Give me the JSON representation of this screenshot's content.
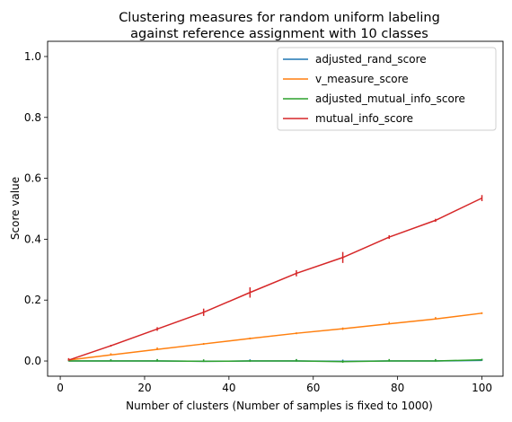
{
  "chart_data": {
    "type": "line",
    "title": [
      "Clustering measures for random uniform labeling",
      "against reference assignment with 10 classes"
    ],
    "xlabel": "Number of clusters (Number of samples is fixed to 1000)",
    "ylabel": "Score value",
    "xlim": [
      -3,
      105
    ],
    "ylim": [
      -0.05,
      1.05
    ],
    "xticks": [
      0,
      20,
      40,
      60,
      80,
      100
    ],
    "xtick_labels": [
      "0",
      "20",
      "40",
      "60",
      "80",
      "100"
    ],
    "yticks": [
      0.0,
      0.2,
      0.4,
      0.6,
      0.8,
      1.0
    ],
    "ytick_labels": [
      "0.0",
      "0.2",
      "0.4",
      "0.6",
      "0.8",
      "1.0"
    ],
    "legend_position": "top-right",
    "x": [
      2,
      12,
      23,
      34,
      45,
      56,
      67,
      78,
      89,
      100
    ],
    "series": [
      {
        "name": "adjusted_rand_score",
        "color": "#1f77b4",
        "values": [
          0.0,
          0.0,
          0.0,
          -0.001,
          0.0,
          0.0,
          -0.001,
          0.0,
          0.0,
          0.002
        ],
        "errors": [
          0.001,
          0.001,
          0.001,
          0.001,
          0.001,
          0.001,
          0.001,
          0.001,
          0.001,
          0.001
        ]
      },
      {
        "name": "v_measure_score",
        "color": "#ff7f0e",
        "values": [
          0.003,
          0.02,
          0.038,
          0.056,
          0.074,
          0.091,
          0.106,
          0.122,
          0.138,
          0.157
        ],
        "errors": [
          0.001,
          0.001,
          0.002,
          0.003,
          0.003,
          0.003,
          0.004,
          0.002,
          0.002,
          0.003
        ]
      },
      {
        "name": "adjusted_mutual_info_score",
        "color": "#2ca02c",
        "values": [
          0.0,
          0.0,
          0.0,
          -0.001,
          0.0,
          0.0,
          -0.002,
          0.0,
          0.0,
          0.004
        ],
        "errors": [
          0.001,
          0.001,
          0.002,
          0.002,
          0.003,
          0.002,
          0.004,
          0.002,
          0.002,
          0.003
        ]
      },
      {
        "name": "mutual_info_score",
        "color": "#d62728",
        "values": [
          0.003,
          0.05,
          0.105,
          0.16,
          0.225,
          0.288,
          0.34,
          0.407,
          0.462,
          0.535
        ],
        "errors": [
          0.002,
          0.003,
          0.006,
          0.012,
          0.017,
          0.01,
          0.018,
          0.006,
          0.005,
          0.01
        ]
      }
    ]
  }
}
